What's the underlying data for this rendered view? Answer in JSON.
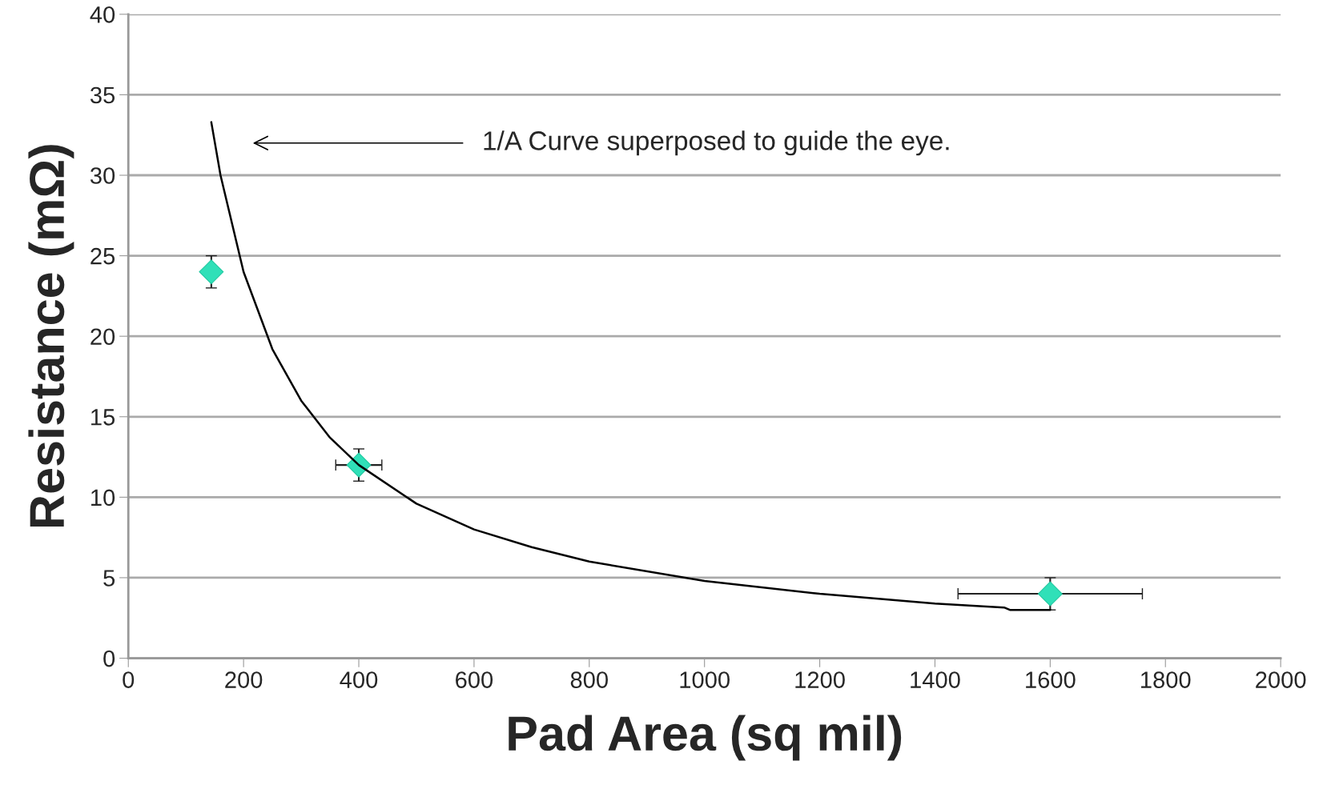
{
  "chart_data": {
    "type": "scatter",
    "xlabel": "Pad Area (sq mil)",
    "ylabel": "Resistance (mΩ)",
    "xlim": [
      0,
      2000
    ],
    "xticks": [
      0,
      200,
      400,
      600,
      800,
      1000,
      1200,
      1400,
      1600,
      1800,
      2000
    ],
    "ylim": [
      0,
      40
    ],
    "yticks": [
      0,
      5,
      10,
      15,
      20,
      25,
      30,
      35,
      40
    ],
    "grid": "y",
    "marker": "diamond",
    "series": [
      {
        "color": "#30e0b8",
        "x": [
          144,
          400,
          1600
        ],
        "values": [
          24,
          12,
          4
        ],
        "errors": [
          1,
          1,
          1
        ],
        "xerrors": [
          null,
          40,
          160
        ]
      },
      {
        "type": "line",
        "color": "#000000",
        "marker": "none",
        "x": [
          144,
          160,
          200,
          250,
          300,
          350,
          400,
          500,
          600,
          700,
          800,
          1000,
          1200,
          1400,
          1520,
          1530,
          1600
        ],
        "values": [
          33.3,
          30,
          24,
          19.2,
          16,
          13.7,
          12,
          9.6,
          8,
          6.9,
          6,
          4.8,
          4,
          3.4,
          3.15,
          3,
          3
        ]
      }
    ],
    "annotations": [
      "1/A Curve superposed to guide the eye."
    ]
  }
}
